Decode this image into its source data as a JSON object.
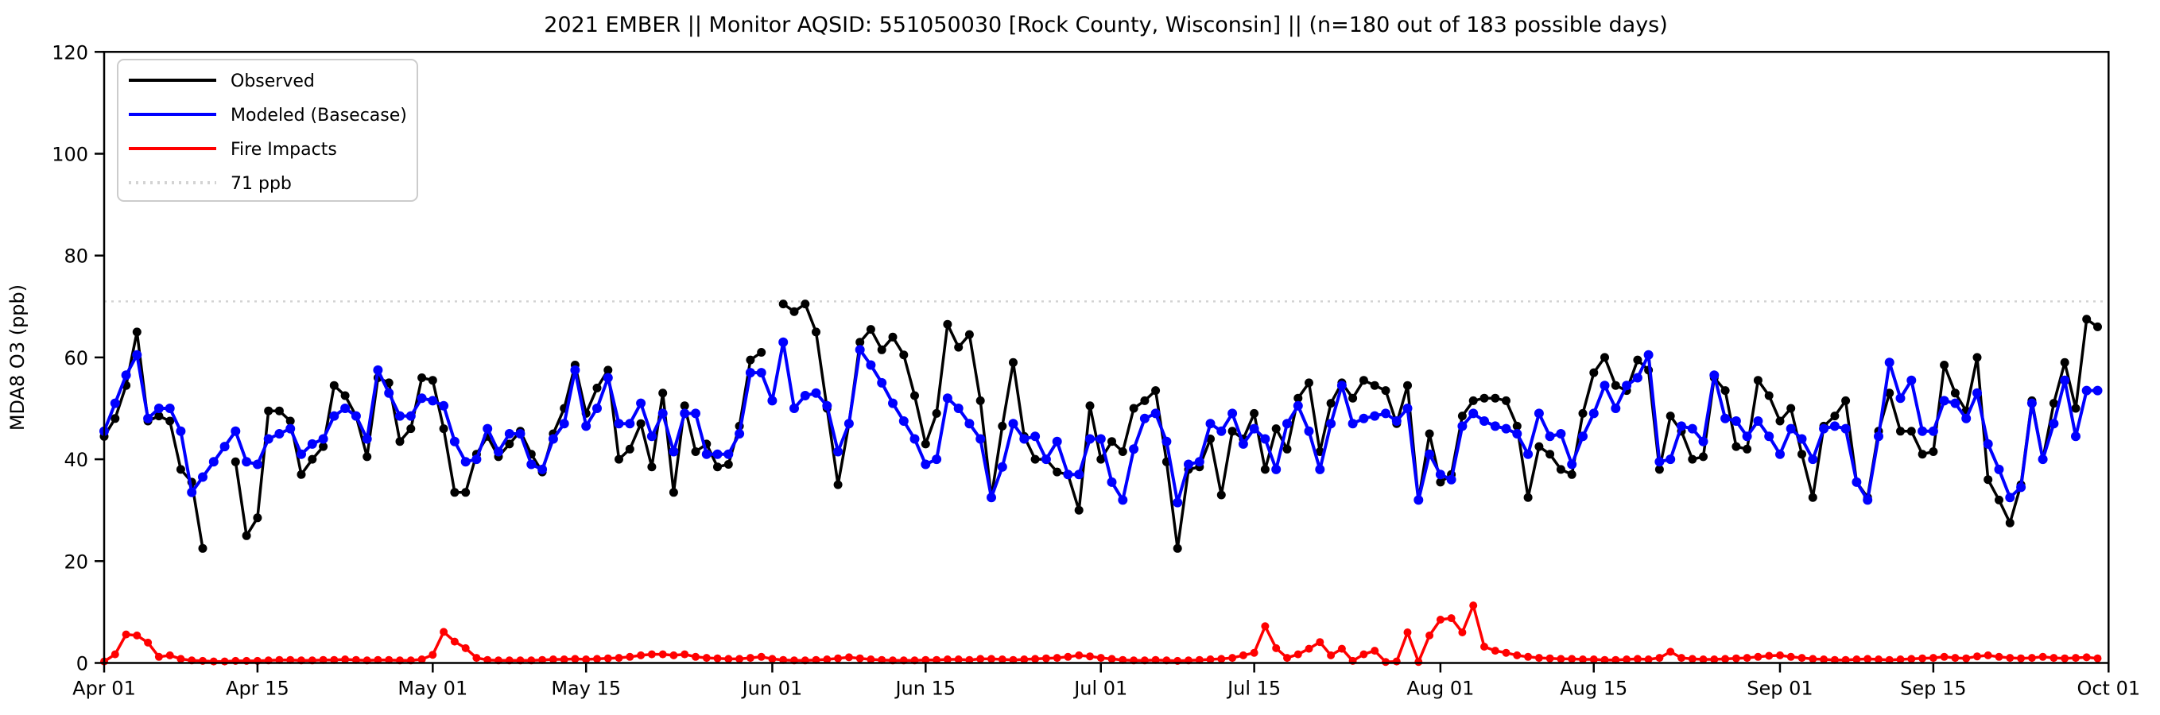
{
  "window": {
    "background": "#ffffff"
  },
  "chart_data": {
    "type": "line",
    "title": "2021 EMBER || Monitor AQSID: 551050030 [Rock County, Wisconsin] || (n=180 out of 183 possible days)",
    "xlabel": "",
    "ylabel": "MDA8 O3 (ppb)",
    "ylim": [
      0,
      120
    ],
    "y_ticks": [
      0,
      20,
      40,
      60,
      80,
      100,
      120
    ],
    "x_range_days": 183,
    "x_ticks": [
      {
        "label": "Apr 01",
        "day": 0
      },
      {
        "label": "Apr 15",
        "day": 14
      },
      {
        "label": "May 01",
        "day": 30
      },
      {
        "label": "May 15",
        "day": 44
      },
      {
        "label": "Jun 01",
        "day": 61
      },
      {
        "label": "Jun 15",
        "day": 75
      },
      {
        "label": "Jul 01",
        "day": 91
      },
      {
        "label": "Jul 15",
        "day": 105
      },
      {
        "label": "Aug 01",
        "day": 122
      },
      {
        "label": "Aug 15",
        "day": 136
      },
      {
        "label": "Sep 01",
        "day": 153
      },
      {
        "label": "Sep 15",
        "day": 167
      },
      {
        "label": "Oct 01",
        "day": 183
      }
    ],
    "grid": false,
    "legend_position": "upper-left",
    "threshold": {
      "label": "71 ppb",
      "value": 71,
      "color": "#d3d3d3",
      "style": "dotted"
    },
    "series": [
      {
        "name": "Observed",
        "color": "#000000",
        "line_width": 3.5,
        "marker_radius": 5.5,
        "values": [
          44.5,
          48,
          54.5,
          65,
          47.5,
          48.5,
          47.5,
          38,
          35.5,
          22.5,
          null,
          null,
          39.5,
          25,
          28.5,
          49.5,
          49.5,
          47.5,
          37,
          40,
          42.5,
          54.5,
          52.5,
          48.5,
          40.5,
          56,
          55,
          43.5,
          46,
          56,
          55.5,
          46,
          33.5,
          33.5,
          41,
          44.5,
          40.5,
          43,
          45.5,
          41,
          37.5,
          45,
          50,
          58.5,
          49,
          54,
          57.5,
          40,
          42,
          47,
          38.5,
          53,
          33.5,
          50.5,
          41.5,
          43,
          38.5,
          39,
          46.5,
          59.5,
          61,
          null,
          70.5,
          69,
          70.5,
          65,
          50,
          35,
          47,
          63,
          65.5,
          61.5,
          64,
          60.5,
          52.5,
          43,
          49,
          66.5,
          62,
          64.5,
          51.5,
          32.5,
          46.5,
          59,
          44.5,
          40,
          40,
          37.5,
          37,
          30,
          50.5,
          40,
          43.5,
          41.5,
          50,
          51.5,
          53.5,
          39.5,
          22.5,
          38,
          38.5,
          44,
          33,
          45.5,
          44,
          49,
          38,
          46,
          42,
          52,
          55,
          41.5,
          51,
          55,
          52,
          55.5,
          54.5,
          53.5,
          47,
          54.5,
          32,
          45,
          35.5,
          37,
          48.5,
          51.5,
          52,
          52,
          51.5,
          46.5,
          32.5,
          42.5,
          41,
          38,
          37,
          49,
          57,
          60,
          54.5,
          53.5,
          59.5,
          57.5,
          38,
          48.5,
          45.5,
          40,
          40.5,
          56,
          53.5,
          42.5,
          42,
          55.5,
          52.5,
          47.5,
          50,
          41,
          32.5,
          46.5,
          48.5,
          51.5,
          35.5,
          32.5,
          45.5,
          53,
          45.5,
          45.5,
          41,
          41.5,
          58.5,
          53,
          49.5,
          60,
          36,
          32,
          27.5,
          35,
          51.5,
          40,
          51,
          59,
          50,
          67.5,
          66
        ]
      },
      {
        "name": "Modeled (Basecase)",
        "color": "#0000ff",
        "line_width": 4,
        "marker_radius": 6,
        "values": [
          45.5,
          51,
          56.5,
          60.5,
          48,
          50,
          50,
          45.5,
          33.5,
          36.5,
          39.5,
          42.5,
          45.5,
          39.5,
          39,
          44,
          45,
          46,
          41,
          43,
          44,
          48.5,
          50,
          48.5,
          44,
          57.5,
          53,
          48.5,
          48.5,
          52,
          51.5,
          50.5,
          43.5,
          39.5,
          40,
          46,
          41.5,
          45,
          45,
          39,
          38,
          44,
          47,
          57.5,
          46.5,
          50,
          56,
          47,
          47,
          51,
          44.5,
          49,
          41.5,
          49,
          49,
          41,
          41,
          41,
          45,
          57,
          57,
          51.5,
          63,
          50,
          52.5,
          53,
          50.5,
          41.5,
          47,
          61.5,
          58.5,
          55,
          51,
          47.5,
          44,
          39,
          40,
          52,
          50,
          47,
          44,
          32.5,
          38.5,
          47,
          44,
          44.5,
          40,
          43.5,
          37,
          37,
          44,
          44,
          35.5,
          32,
          42,
          48,
          49,
          43.5,
          31.5,
          39,
          39.5,
          47,
          45.5,
          49,
          43,
          46,
          44,
          38,
          47,
          50.5,
          45.5,
          38,
          47,
          54.5,
          47,
          48,
          48.5,
          49,
          47.5,
          50,
          32,
          41,
          37,
          36,
          46.5,
          49,
          47.5,
          46.5,
          46,
          45,
          41,
          49,
          44.5,
          45,
          39,
          44.5,
          49,
          54.5,
          50,
          54.5,
          56,
          60.5,
          39.5,
          40,
          46.5,
          46,
          43.5,
          56.5,
          48,
          47.5,
          44.5,
          47.5,
          44.5,
          41,
          46,
          44,
          40,
          46,
          46.5,
          46,
          35.5,
          32,
          44.5,
          59,
          52,
          55.5,
          45.5,
          45.5,
          51.5,
          51,
          48,
          53,
          43,
          38,
          32.5,
          34.5,
          51,
          40,
          47,
          55.5,
          44.5,
          53.5,
          53.5
        ]
      },
      {
        "name": "Fire Impacts",
        "color": "#ff0000",
        "line_width": 3.5,
        "marker_radius": 5,
        "values": [
          0.3,
          1.7,
          5.6,
          5.4,
          4,
          1.2,
          1.5,
          0.8,
          0.5,
          0.4,
          0.3,
          0.3,
          0.4,
          0.4,
          0.4,
          0.5,
          0.6,
          0.6,
          0.5,
          0.5,
          0.6,
          0.6,
          0.7,
          0.6,
          0.5,
          0.6,
          0.6,
          0.5,
          0.5,
          0.7,
          1.6,
          6.1,
          4.2,
          2.9,
          1,
          0.6,
          0.5,
          0.5,
          0.5,
          0.5,
          0.6,
          0.7,
          0.7,
          0.8,
          0.7,
          0.8,
          0.9,
          1,
          1.2,
          1.5,
          1.7,
          1.7,
          1.5,
          1.7,
          1.2,
          1,
          0.9,
          0.8,
          0.8,
          1,
          1.2,
          0.8,
          0.6,
          0.5,
          0.5,
          0.6,
          0.7,
          0.9,
          1.1,
          0.9,
          0.7,
          0.6,
          0.5,
          0.5,
          0.5,
          0.6,
          0.6,
          0.7,
          0.7,
          0.6,
          0.8,
          0.8,
          0.7,
          0.6,
          0.7,
          0.8,
          0.9,
          1,
          1.2,
          1.5,
          1.3,
          1,
          0.8,
          0.6,
          0.5,
          0.5,
          0.6,
          0.5,
          0.4,
          0.5,
          0.6,
          0.7,
          0.8,
          1,
          1.5,
          2,
          7.2,
          2.9,
          1,
          1.7,
          2.8,
          4.1,
          1.5,
          2.8,
          0.4,
          1.7,
          2.4,
          0.2,
          0.3,
          6,
          0.2,
          5.4,
          8.5,
          8.8,
          6,
          11.3,
          3.2,
          2.4,
          2,
          1.5,
          1.2,
          1,
          0.9,
          0.8,
          0.8,
          0.7,
          0.7,
          0.6,
          0.6,
          0.7,
          0.8,
          0.7,
          1,
          2.2,
          1,
          0.8,
          0.7,
          0.7,
          0.8,
          0.9,
          1,
          1.2,
          1.4,
          1.5,
          1.2,
          1,
          0.8,
          0.7,
          0.6,
          0.6,
          0.7,
          0.8,
          0.7,
          0.6,
          0.7,
          0.8,
          0.9,
          1,
          1.2,
          1,
          0.9,
          1.3,
          1.5,
          1.2,
          1,
          0.9,
          1,
          1.2,
          1,
          0.9,
          1,
          1.1,
          0.9
        ]
      }
    ],
    "legend_entries": [
      {
        "label": "Observed",
        "color": "#000000",
        "style": "solid"
      },
      {
        "label": "Modeled (Basecase)",
        "color": "#0000ff",
        "style": "solid"
      },
      {
        "label": "Fire Impacts",
        "color": "#ff0000",
        "style": "solid"
      },
      {
        "label": "71 ppb",
        "color": "#d3d3d3",
        "style": "dotted"
      }
    ]
  }
}
